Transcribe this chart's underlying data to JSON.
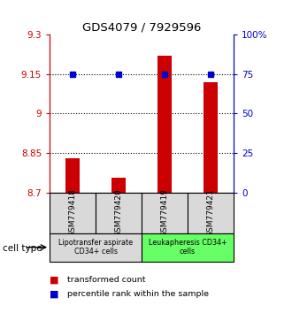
{
  "title": "GDS4079 / 7929596",
  "samples": [
    "GSM779418",
    "GSM779420",
    "GSM779419",
    "GSM779421"
  ],
  "bar_values": [
    8.83,
    8.755,
    9.22,
    9.12
  ],
  "dot_values": [
    9.15,
    9.15,
    9.15,
    9.15
  ],
  "bar_bottom": 8.7,
  "ylim_left": [
    8.7,
    9.3
  ],
  "ylim_right": [
    0,
    100
  ],
  "yticks_left": [
    8.7,
    8.85,
    9.0,
    9.15,
    9.3
  ],
  "ytick_labels_left": [
    "8.7",
    "8.85",
    "9",
    "9.15",
    "9.3"
  ],
  "yticks_right": [
    0,
    25,
    50,
    75,
    100
  ],
  "ytick_labels_right": [
    "0",
    "25",
    "50",
    "75",
    "100%"
  ],
  "hlines": [
    8.85,
    9.0,
    9.15
  ],
  "bar_color": "#cc0000",
  "dot_color": "#0000cc",
  "group1_label": "Lipotransfer aspirate\nCD34+ cells",
  "group2_label": "Leukapheresis CD34+\ncells",
  "sample_box_color": "#d9d9d9",
  "group1_color": "#d9d9d9",
  "group2_color": "#66ff66",
  "cell_type_label": "cell type",
  "legend_bar_label": "transformed count",
  "legend_dot_label": "percentile rank within the sample",
  "left_axis_color": "#cc0000",
  "right_axis_color": "#0000cc",
  "bar_width": 0.3
}
